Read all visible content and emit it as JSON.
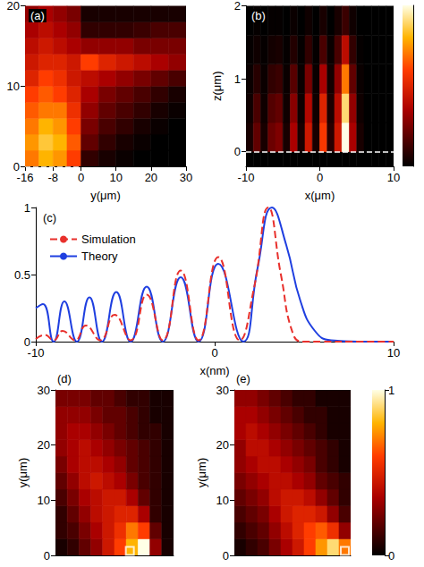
{
  "chart_data": [
    {
      "type": "heatmap",
      "label": "(a)",
      "xlabel": "y(μm)",
      "xlim": [
        -16,
        30
      ],
      "xticks": [
        -16,
        -8,
        0,
        10,
        20,
        30
      ],
      "ylim": [
        0,
        20
      ],
      "yticks": [
        0,
        10,
        20
      ],
      "x_edges": [
        -16,
        -12,
        -8,
        -4,
        0,
        5,
        10,
        15,
        20,
        25,
        30
      ],
      "y_edges": [
        0,
        2,
        4,
        6,
        8,
        10,
        12,
        14,
        16,
        18,
        20
      ],
      "cells": [
        [
          0.7,
          0.8,
          0.75,
          0.6,
          0.1,
          0.05,
          0.02,
          0,
          0,
          0
        ],
        [
          0.75,
          0.85,
          0.8,
          0.65,
          0.2,
          0.1,
          0.05,
          0.02,
          0,
          0
        ],
        [
          0.7,
          0.8,
          0.75,
          0.6,
          0.25,
          0.15,
          0.1,
          0.05,
          0.02,
          0
        ],
        [
          0.65,
          0.7,
          0.7,
          0.55,
          0.3,
          0.2,
          0.15,
          0.1,
          0.05,
          0.02
        ],
        [
          0.6,
          0.65,
          0.6,
          0.5,
          0.35,
          0.25,
          0.2,
          0.15,
          0.1,
          0.05
        ],
        [
          0.5,
          0.6,
          0.55,
          0.45,
          0.4,
          0.35,
          0.3,
          0.25,
          0.2,
          0.15
        ],
        [
          0.45,
          0.5,
          0.5,
          0.45,
          0.6,
          0.5,
          0.45,
          0.4,
          0.35,
          0.3
        ],
        [
          0.4,
          0.45,
          0.4,
          0.35,
          0.3,
          0.3,
          0.3,
          0.25,
          0.25,
          0.25
        ],
        [
          0.35,
          0.4,
          0.35,
          0.3,
          0.1,
          0.1,
          0.1,
          0.12,
          0.15,
          0.15
        ],
        [
          0.3,
          0.35,
          0.3,
          0.25,
          0.05,
          0.05,
          0.05,
          0.05,
          0.05,
          0.05
        ]
      ],
      "color_range": [
        0,
        1
      ],
      "box": [
        -16,
        0
      ]
    },
    {
      "type": "heatmap",
      "label": "(b)",
      "xlabel": "x(μm)",
      "ylabel": "z(μm)",
      "xlim": [
        -10,
        10
      ],
      "xticks": [
        -10,
        0,
        10
      ],
      "ylim": [
        -0.2,
        2
      ],
      "yticks": [
        0,
        1,
        2
      ],
      "x_edges": [
        -10,
        -9,
        -8,
        -7,
        -6,
        -5,
        -4,
        -3,
        -2,
        -1,
        0,
        1,
        2,
        3,
        4,
        5,
        6,
        7,
        8,
        9,
        10
      ],
      "y_edges": [
        -0.2,
        0,
        0.4,
        0.8,
        1.2,
        1.6,
        2
      ],
      "cells": [
        [
          0,
          0,
          0,
          0,
          0,
          0,
          0,
          0,
          0,
          0,
          0,
          0,
          0,
          0,
          0,
          0,
          0,
          0,
          0,
          0
        ],
        [
          0.05,
          0.2,
          0.05,
          0.22,
          0.26,
          0.05,
          0.35,
          0.05,
          0.45,
          0.05,
          0.58,
          0.08,
          0.45,
          1,
          0.35,
          0.05,
          0,
          0,
          0,
          0
        ],
        [
          0.03,
          0.15,
          0.03,
          0.17,
          0.2,
          0.03,
          0.28,
          0.03,
          0.38,
          0.03,
          0.5,
          0.06,
          0.4,
          0.9,
          0.3,
          0.03,
          0,
          0,
          0,
          0
        ],
        [
          0.02,
          0.08,
          0.02,
          0.1,
          0.12,
          0.02,
          0.18,
          0.02,
          0.25,
          0.02,
          0.35,
          0.04,
          0.3,
          0.7,
          0.2,
          0.02,
          0,
          0,
          0,
          0
        ],
        [
          0.01,
          0.03,
          0.01,
          0.04,
          0.05,
          0.01,
          0.07,
          0.01,
          0.1,
          0.01,
          0.15,
          0.02,
          0.15,
          0.4,
          0.1,
          0.01,
          0,
          0,
          0,
          0
        ],
        [
          0,
          0.01,
          0,
          0.01,
          0.01,
          0,
          0.02,
          0,
          0.03,
          0,
          0.05,
          0,
          0.05,
          0.12,
          0.03,
          0,
          0,
          0,
          0,
          0
        ]
      ],
      "color_range": [
        0,
        1
      ],
      "line": 0,
      "colorbar": true
    },
    {
      "type": "line",
      "label": "(c)",
      "xlabel": "x(nm)",
      "xlim": [
        -10,
        10
      ],
      "xticks": [
        -10,
        0,
        10
      ],
      "ylim": [
        0,
        1
      ],
      "yticks": [
        0,
        0.5,
        1
      ],
      "legend": "upper left",
      "series": [
        {
          "name": "Simulation",
          "color": "#e8302c",
          "line_style": "dashed",
          "x": [
            -10,
            -9.5,
            -9.0,
            -8.5,
            -7.8,
            -7.2,
            -6.4,
            -5.6,
            -4.7,
            -3.8,
            -2.9,
            -1.9,
            -0.9,
            0.2,
            1.4,
            2.2,
            3.0,
            3.7,
            4.4,
            5,
            6,
            8,
            10
          ],
          "values": [
            0.02,
            0.05,
            0.01,
            0.08,
            0.01,
            0.12,
            0.01,
            0.2,
            0.01,
            0.35,
            0.01,
            0.53,
            0.01,
            0.63,
            0.01,
            0.4,
            1.0,
            0.5,
            0.05,
            0,
            0,
            0,
            0
          ]
        },
        {
          "name": "Theory",
          "color": "#1f3fe0",
          "line_style": "solid",
          "x": [
            -10,
            -9.6,
            -9.0,
            -8.4,
            -7.7,
            -7.0,
            -6.3,
            -5.5,
            -4.7,
            -3.8,
            -2.9,
            -1.9,
            -0.9,
            0.2,
            1.6,
            2.4,
            3.2,
            4.0,
            4.8,
            5.6,
            6.5,
            8,
            10
          ],
          "values": [
            0.25,
            0.28,
            0,
            0.3,
            0,
            0.33,
            0,
            0.37,
            0,
            0.41,
            0,
            0.48,
            0,
            0.58,
            0,
            0.55,
            1.0,
            0.72,
            0.3,
            0.08,
            0.01,
            0,
            0
          ]
        }
      ]
    },
    {
      "type": "heatmap",
      "label": "(d)",
      "ylabel": "y(μm)",
      "xlim": [
        -10,
        10
      ],
      "ylim": [
        0,
        30
      ],
      "yticks": [
        0,
        10,
        20,
        30
      ],
      "tick_labels": "y",
      "x_edges": [
        -10,
        -8,
        -6,
        -4,
        -2,
        0,
        2,
        4,
        6,
        8,
        10
      ],
      "y_edges": [
        0,
        3,
        6,
        9,
        12,
        15,
        18,
        21,
        24,
        27,
        30
      ],
      "cells": [
        [
          0.05,
          0.1,
          0.2,
          0.3,
          0.45,
          0.6,
          0.8,
          1.0,
          0.3,
          0.05
        ],
        [
          0.1,
          0.15,
          0.25,
          0.35,
          0.45,
          0.55,
          0.7,
          0.6,
          0.2,
          0.05
        ],
        [
          0.1,
          0.2,
          0.3,
          0.4,
          0.45,
          0.5,
          0.5,
          0.35,
          0.1,
          0.05
        ],
        [
          0.15,
          0.25,
          0.35,
          0.4,
          0.45,
          0.45,
          0.35,
          0.2,
          0.1,
          0.05
        ],
        [
          0.2,
          0.3,
          0.4,
          0.45,
          0.4,
          0.35,
          0.25,
          0.15,
          0.1,
          0.05
        ],
        [
          0.25,
          0.35,
          0.4,
          0.4,
          0.35,
          0.3,
          0.2,
          0.15,
          0.1,
          0.05
        ],
        [
          0.3,
          0.35,
          0.4,
          0.35,
          0.3,
          0.25,
          0.2,
          0.15,
          0.1,
          0.05
        ],
        [
          0.3,
          0.35,
          0.35,
          0.3,
          0.25,
          0.2,
          0.15,
          0.1,
          0.1,
          0.05
        ],
        [
          0.3,
          0.3,
          0.3,
          0.25,
          0.2,
          0.2,
          0.15,
          0.1,
          0.05,
          0.05
        ],
        [
          0.25,
          0.25,
          0.25,
          0.2,
          0.2,
          0.15,
          0.1,
          0.1,
          0.05,
          0.05
        ]
      ],
      "color_range": [
        0,
        1
      ],
      "source": [
        2.6,
        0.8
      ]
    },
    {
      "type": "heatmap",
      "label": "(e)",
      "ylabel": "y(μm)",
      "xlim": [
        -10,
        10
      ],
      "ylim": [
        0,
        30
      ],
      "yticks": [
        0,
        10,
        20,
        30
      ],
      "tick_labels": "y",
      "x_edges": [
        -10,
        -8,
        -6,
        -4,
        -2,
        0,
        2,
        4,
        6,
        8,
        10
      ],
      "y_edges": [
        0,
        3,
        6,
        9,
        12,
        15,
        18,
        21,
        24,
        27,
        30
      ],
      "cells": [
        [
          0.05,
          0.1,
          0.15,
          0.25,
          0.35,
          0.45,
          0.6,
          0.75,
          0.9,
          0.7
        ],
        [
          0.1,
          0.15,
          0.2,
          0.3,
          0.4,
          0.5,
          0.6,
          0.65,
          0.55,
          0.3
        ],
        [
          0.15,
          0.2,
          0.25,
          0.35,
          0.45,
          0.5,
          0.5,
          0.45,
          0.3,
          0.15
        ],
        [
          0.2,
          0.25,
          0.3,
          0.4,
          0.45,
          0.45,
          0.4,
          0.3,
          0.2,
          0.1
        ],
        [
          0.25,
          0.3,
          0.35,
          0.4,
          0.4,
          0.35,
          0.3,
          0.2,
          0.15,
          0.1
        ],
        [
          0.3,
          0.35,
          0.4,
          0.4,
          0.35,
          0.3,
          0.25,
          0.15,
          0.1,
          0.05
        ],
        [
          0.3,
          0.4,
          0.4,
          0.35,
          0.3,
          0.25,
          0.2,
          0.15,
          0.1,
          0.05
        ],
        [
          0.35,
          0.4,
          0.35,
          0.3,
          0.25,
          0.2,
          0.15,
          0.1,
          0.05,
          0.05
        ],
        [
          0.35,
          0.35,
          0.3,
          0.25,
          0.2,
          0.15,
          0.1,
          0.1,
          0.05,
          0.05
        ],
        [
          0.3,
          0.3,
          0.25,
          0.2,
          0.15,
          0.1,
          0.1,
          0.05,
          0.05,
          0.05
        ]
      ],
      "color_range": [
        0,
        1
      ],
      "source": [
        9,
        0.8
      ],
      "colorbar": true,
      "colorbar_ticks": [
        0,
        1
      ]
    }
  ]
}
